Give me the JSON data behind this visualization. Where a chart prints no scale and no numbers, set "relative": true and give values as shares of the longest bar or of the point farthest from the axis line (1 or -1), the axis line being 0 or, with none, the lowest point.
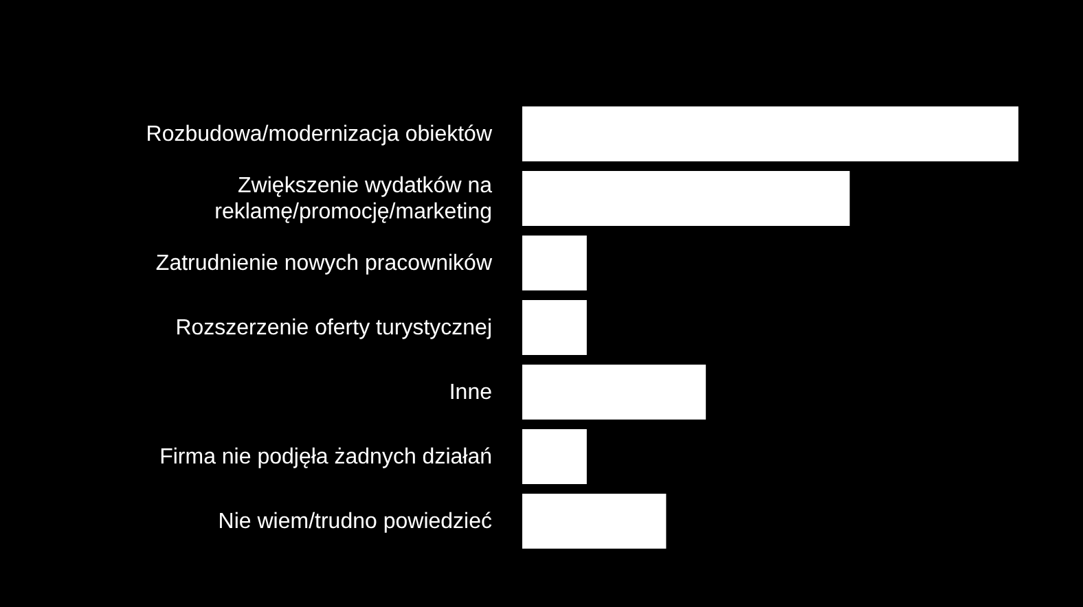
{
  "chart_data": {
    "type": "bar",
    "orientation": "horizontal",
    "relative": true,
    "categories": [
      "Rozbudowa/modernizacja obiektów",
      "Zwiększenie wydatków na reklamę/promocję/marketing",
      "Zatrudnienie nowych pracowników",
      "Rozszerzenie oferty turystycznej",
      "Inne",
      "Firma nie podjęła żadnych działań",
      "Nie wiem/trudno powiedzieć"
    ],
    "values": [
      1,
      0.66,
      0.13,
      0.13,
      0.37,
      0.13,
      0.29
    ],
    "color": "#ffffff"
  }
}
